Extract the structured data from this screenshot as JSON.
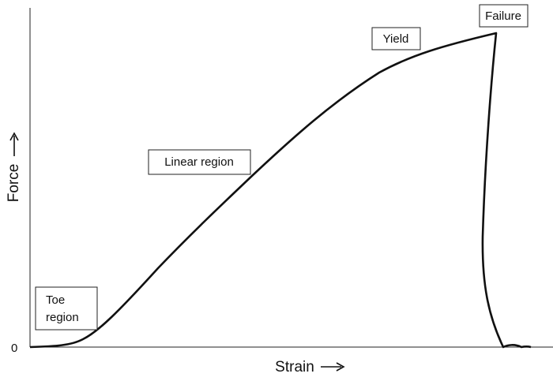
{
  "axes": {
    "y_label": "Force",
    "x_label": "Strain",
    "origin": "0"
  },
  "regions": {
    "toe": [
      "Toe",
      "region"
    ],
    "linear": "Linear region",
    "yield": "Yield",
    "failure": "Failure"
  }
}
